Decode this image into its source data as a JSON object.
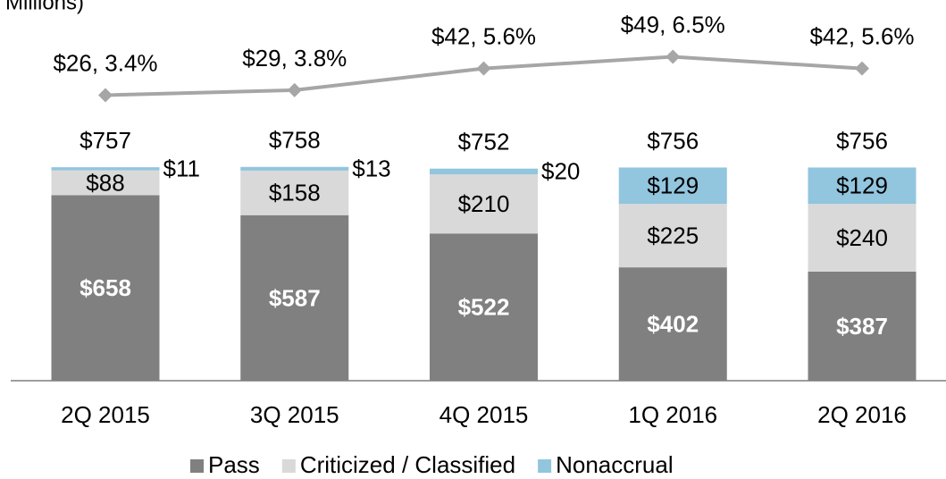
{
  "chart_data": {
    "type": "bar",
    "subtitle": "Millions)",
    "categories": [
      "2Q 2015",
      "3Q 2015",
      "4Q 2015",
      "1Q 2016",
      "2Q 2016"
    ],
    "stacked": true,
    "ylim": [
      0,
      1350
    ],
    "y2lim": [
      -145,
      83
    ],
    "series": [
      {
        "name": "Pass",
        "color": "#808080",
        "values": [
          658,
          587,
          522,
          402,
          387
        ],
        "value_labels": [
          "$658",
          "$587",
          "$522",
          "$402",
          "$387"
        ]
      },
      {
        "name": "Criticized / Classified",
        "color": "#d9d9d9",
        "values": [
          88,
          158,
          210,
          225,
          240
        ],
        "value_labels": [
          "$88",
          "$158",
          "$210",
          "$225",
          "$240"
        ]
      },
      {
        "name": "Nonaccrual",
        "color": "#92c5de",
        "values": [
          11,
          13,
          20,
          129,
          129
        ],
        "value_labels": [
          "$11",
          "$13",
          "$20",
          "$129",
          "$129"
        ]
      }
    ],
    "totals": [
      757,
      758,
      752,
      756,
      756
    ],
    "total_labels": [
      "$757",
      "$758",
      "$752",
      "$756",
      "$756"
    ],
    "line": {
      "type": "line",
      "axis": "y2",
      "color": "#a6a6a6",
      "values": [
        26,
        29,
        42,
        49,
        42
      ],
      "percents": [
        3.4,
        3.8,
        5.6,
        6.5,
        5.6
      ],
      "value_labels": [
        "$26, 3.4%",
        "$29, 3.8%",
        "$42, 5.6%",
        "$49, 6.5%",
        "$42, 5.6%"
      ]
    }
  }
}
